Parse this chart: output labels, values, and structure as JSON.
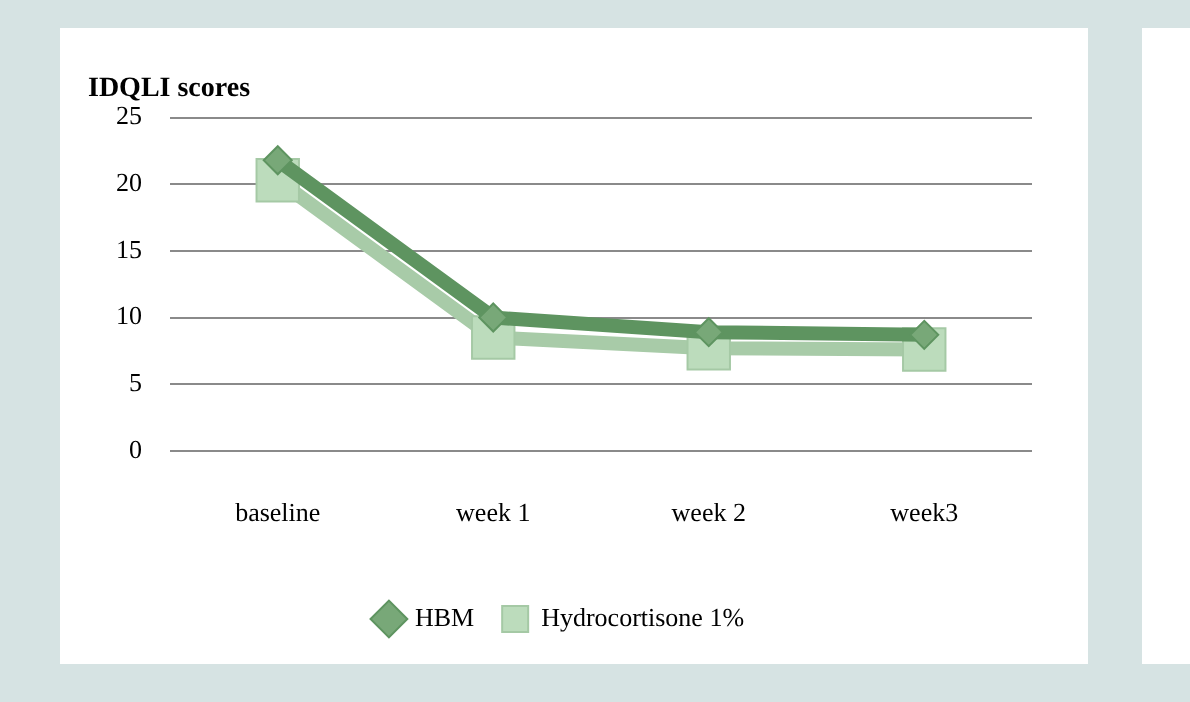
{
  "chart_data": {
    "type": "line",
    "title": "IDQLI scores",
    "categories": [
      "baseline",
      "week 1",
      "week 2",
      "week3"
    ],
    "series": [
      {
        "name": "HBM",
        "color": "#5e9460",
        "values": [
          21.8,
          10,
          8.9,
          8.7
        ],
        "marker": "diamond"
      },
      {
        "name": "Hydrocortisone 1%",
        "color": "#a8cba8",
        "values": [
          20.3,
          8.5,
          7.7,
          7.6
        ],
        "marker": "square"
      }
    ],
    "ylim": [
      0,
      25
    ],
    "yticks": [
      0,
      5,
      10,
      15,
      20,
      25
    ],
    "grid": "y",
    "legend": "bottom",
    "line_style": "solid"
  }
}
